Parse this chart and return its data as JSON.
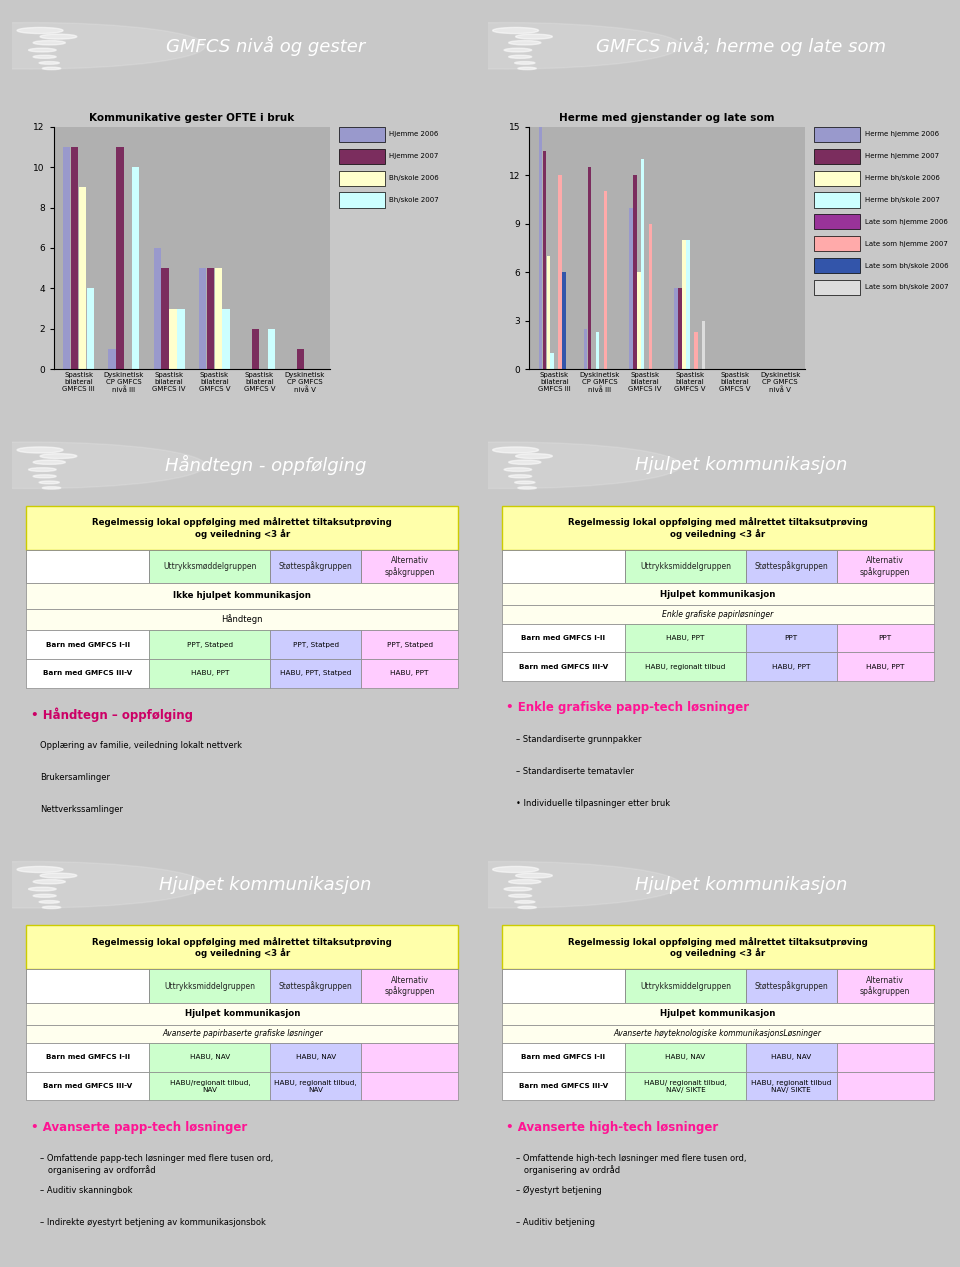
{
  "slide_bg": "#c8c8c8",
  "panel_bg": "#ffffff",
  "header_bg": "#7aaccf",
  "header_text_color": "#ffffff",
  "panel1": {
    "title": "GMFCS nivå og gester",
    "chart_title": "Kommunikative gester OFTE i bruk",
    "categories": [
      "Spastisk\nbilateral\nGMFCS III",
      "Dyskinetisk\nCP GMFCS\nnivå III",
      "Spastisk\nbilateral\nGMFCS IV",
      "Spastisk\nbilateral\nGMFCS V",
      "Spastisk\nbilateral\nGMFCS V",
      "Dyskinetisk\nCP GMFCS\nnivå V"
    ],
    "series": [
      {
        "name": "Hjemme 2006",
        "color": "#9999cc",
        "values": [
          11,
          1,
          6,
          5,
          0,
          0
        ]
      },
      {
        "name": "Hjemme 2007",
        "color": "#7b2d5e",
        "values": [
          11,
          11,
          5,
          5,
          2,
          1
        ]
      },
      {
        "name": "Bh/skole 2006",
        "color": "#ffffcc",
        "values": [
          9,
          0,
          3,
          5,
          0,
          0
        ]
      },
      {
        "name": "Bh/skole 2007",
        "color": "#ccffff",
        "values": [
          4,
          10,
          3,
          3,
          2,
          0
        ]
      }
    ],
    "ylim": [
      0,
      12
    ],
    "yticks": [
      0,
      2,
      4,
      6,
      8,
      10,
      12
    ],
    "chart_bg": "#b0b0b0"
  },
  "panel2": {
    "title": "GMFCS nivå; herme og late som",
    "chart_title": "Herme med gjenstander og late som",
    "categories": [
      "Spastisk\nbilateral\nGMFCS III",
      "Dyskinetisk\nCP GMFCS\nnivå III",
      "Spastisk\nbilateral\nGMFCS IV",
      "Spastisk\nbilateral\nGMFCS V",
      "Spastisk\nbilateral\nGMFCS V",
      "Dyskinetisk\nCP GMFCS\nnivå V"
    ],
    "series": [
      {
        "name": "Herme hjemme 2006",
        "color": "#9999cc",
        "values": [
          15,
          2.5,
          10,
          5,
          0,
          0
        ]
      },
      {
        "name": "Herme hjemme 2007",
        "color": "#7b2d5e",
        "values": [
          13.5,
          12.5,
          12,
          5.0,
          0,
          0
        ]
      },
      {
        "name": "Herme bh/skole 2006",
        "color": "#ffffcc",
        "values": [
          7,
          0,
          6,
          8,
          0,
          0
        ]
      },
      {
        "name": "Herme bh/skole 2007",
        "color": "#ccffff",
        "values": [
          1,
          2.3,
          13,
          8,
          0,
          0
        ]
      },
      {
        "name": "Late som hjemme 2006",
        "color": "#993399",
        "values": [
          0,
          0,
          0,
          0,
          0,
          0
        ]
      },
      {
        "name": "Late som hjemme 2007",
        "color": "#ffaaaa",
        "values": [
          12,
          11,
          9,
          2.3,
          0,
          0
        ]
      },
      {
        "name": "Late som bh/skole 2006",
        "color": "#3355aa",
        "values": [
          6,
          0,
          0,
          0,
          0,
          0
        ]
      },
      {
        "name": "Late som bh/skole 2007",
        "color": "#dddddd",
        "values": [
          0,
          0,
          0,
          3,
          0,
          0
        ]
      }
    ],
    "ylim": [
      0,
      15
    ],
    "yticks": [
      0,
      3,
      6,
      9,
      12,
      15
    ],
    "chart_bg": "#b0b0b0"
  },
  "panel3": {
    "title": "Håndtegn - oppfølging",
    "header_text": "Regelmessig lokal oppfølging med målrettet tiltaksutprøving\nog veiledning <3 år",
    "col_headers": [
      "Uttrykksmøddelgruppen",
      "Støttespåkgruppen",
      "Alternativ\nspåkgruppen"
    ],
    "row1_label": "Ikke hjulpet kommunikasjon",
    "row2_label": "Håndtegn",
    "rows": [
      [
        "Barn med GMFCS I-II",
        "PPT, Statped",
        "PPT, Statped",
        "PPT, Statped"
      ],
      [
        "Barn med GMFCS III-V",
        "HABU, PPT",
        "HABU, PPT, Statped",
        "HABU, PPT"
      ]
    ],
    "bullet_title": "• Håndtegn – oppfølging",
    "bullet_color": "#cc0066",
    "bullet_items": [
      "Opplæring av familie, veiledning lokalt nettverk",
      "Brukersamlinger",
      "Nettverkssamlinger"
    ]
  },
  "panel4": {
    "title": "Hjulpet kommunikasjon",
    "header_text": "Regelmessig lokal oppfølging med målrettet tiltaksutprøving\nog veiledning <3 år",
    "col_headers": [
      "Uttrykksmiddelgruppen",
      "Støttespåkgruppen",
      "Alternativ\nspåkgruppen"
    ],
    "section_label": "Hjulpet kommunikasjon",
    "row1_label": "Enkle grafiske papirløsninger",
    "rows": [
      [
        "Barn med GMFCS I-II",
        "HABU, PPT",
        "PPT",
        "PPT"
      ],
      [
        "Barn med GMFCS III-V",
        "HABU, regionalt tilbud",
        "HABU, PPT",
        "HABU, PPT"
      ]
    ],
    "bullet_title": "• Enkle grafiske papp-tech løsninger",
    "bullet_color": "#ff1493",
    "bullet_items": [
      "– Standardiserte grunnpakker",
      "– Standardiserte tematavler",
      "• Individuelle tilpasninger etter bruk"
    ]
  },
  "panel5": {
    "title": "Hjulpet kommunikasjon",
    "header_text": "Regelmessig lokal oppfølging med målrettet tiltaksutprøving\nog veiledning <3 år",
    "col_headers": [
      "Uttrykksmiddelgruppen",
      "Støttespåkgruppen",
      "Alternativ\nspåkgruppen"
    ],
    "section_label": "Hjulpet kommunikasjon",
    "row1_label": "Avanserte papirbaserte grafiske løsninger",
    "rows": [
      [
        "Barn med GMFCS I-II",
        "HABU, NAV",
        "HABU, NAV",
        ""
      ],
      [
        "Barn med GMFCS III-V",
        "HABU/regionalt tilbud,\nNAV",
        "HABU, regionalt tilbud,\nNAV",
        ""
      ]
    ],
    "bullet_title": "• Avanserte papp-tech løsninger",
    "bullet_color": "#ff1493",
    "bullet_items": [
      "– Omfattende papp-tech løsninger med flere tusen ord,\n   organisering av ordforråd",
      "– Auditiv skanningbok",
      "– Indirekte øyestyrt betjening av kommunikasjonsbok"
    ]
  },
  "panel6": {
    "title": "Hjulpet kommunikasjon",
    "header_text": "Regelmessig lokal oppfølging med målrettet tiltaksutprøving\nog veiledning <3 år",
    "col_headers": [
      "Uttrykksmiddelgruppen",
      "Støttespåkgruppen",
      "Alternativ\nspåkgruppen"
    ],
    "section_label": "Hjulpet kommunikasjon",
    "row1_label": "Avanserte høyteknologiske kommunikasjonsLøsninger",
    "rows": [
      [
        "Barn med GMFCS I-II",
        "HABU, NAV",
        "HABU, NAV",
        ""
      ],
      [
        "Barn med GMFCS III-V",
        "HABU/ regionalt tilbud,\nNAV/ SIKTE",
        "HABU, regionalt tilbud\nNAV/ SIKTE",
        ""
      ]
    ],
    "bullet_title": "• Avanserte high-tech løsninger",
    "bullet_color": "#ff1493",
    "bullet_items": [
      "– Omfattende high-tech løsninger med flere tusen ord,\n   organisering av ordråd",
      "– Øyestyrt betjening",
      "– Auditiv betjening"
    ]
  },
  "col_colors_table": [
    "#ffffff",
    "#ccffcc",
    "#ccccff",
    "#ffccff"
  ],
  "yellow_hdr_color": "#ffffaa",
  "yellow_hdr_border": "#cccc00"
}
